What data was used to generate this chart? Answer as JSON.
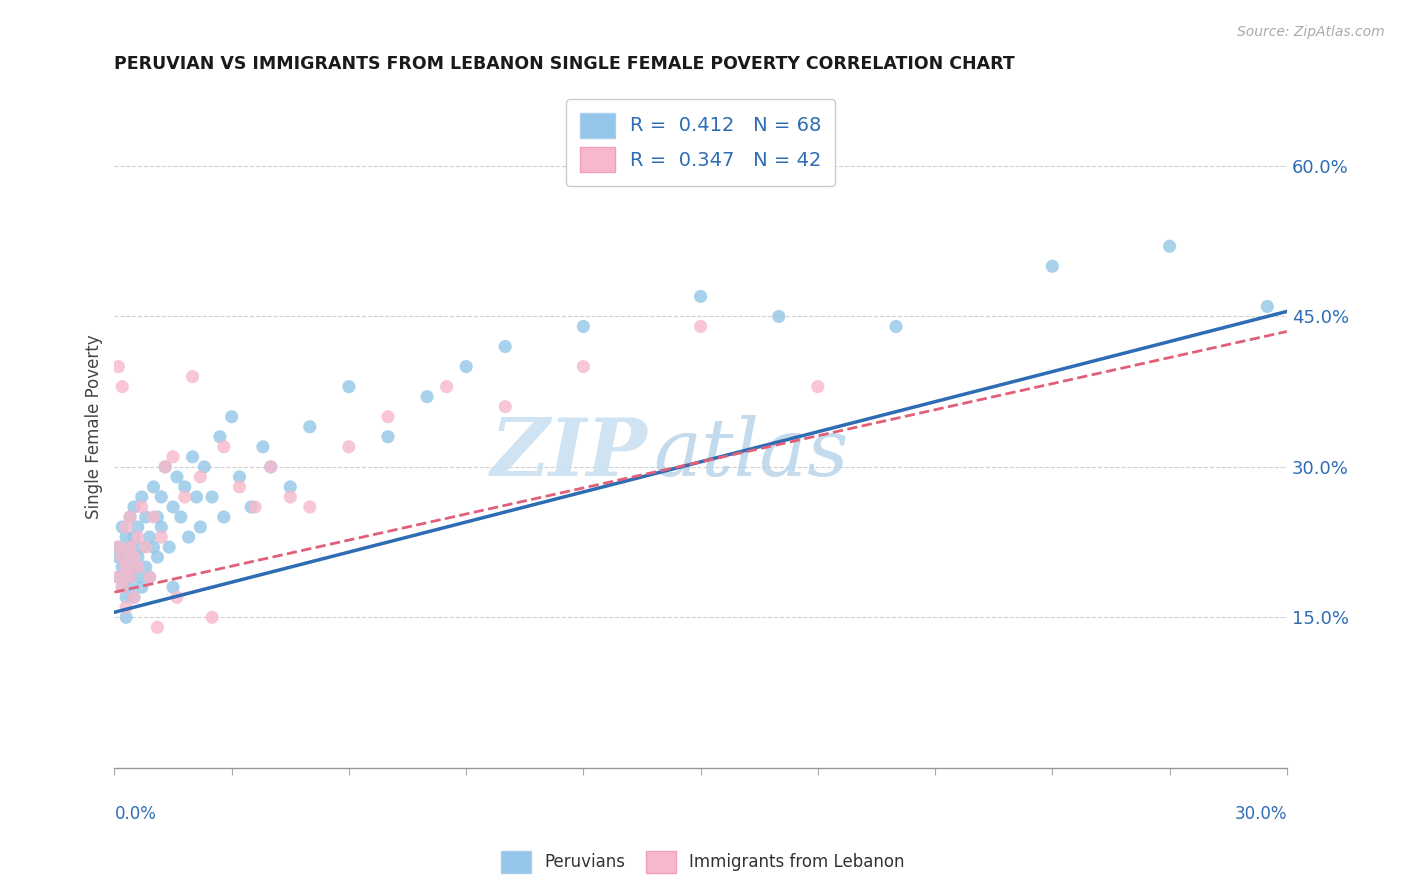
{
  "title": "PERUVIAN VS IMMIGRANTS FROM LEBANON SINGLE FEMALE POVERTY CORRELATION CHART",
  "source": "Source: ZipAtlas.com",
  "ylabel": "Single Female Poverty",
  "ylabel_ticks": [
    "15.0%",
    "30.0%",
    "45.0%",
    "60.0%"
  ],
  "ylabel_tick_vals": [
    0.15,
    0.3,
    0.45,
    0.6
  ],
  "xmin": 0.0,
  "xmax": 0.3,
  "ymin": 0.0,
  "ymax": 0.68,
  "blue_color": "#93c6e8",
  "pink_color": "#f7b8cb",
  "blue_line_color": "#2e6db4",
  "pink_line_color": "#e0607a",
  "watermark_zip": "ZIP",
  "watermark_atlas": "atlas",
  "peruvians_label": "Peruvians",
  "lebanon_label": "Immigrants from Lebanon",
  "peru_x": [
    0.001,
    0.001,
    0.001,
    0.002,
    0.002,
    0.002,
    0.003,
    0.003,
    0.003,
    0.003,
    0.004,
    0.004,
    0.004,
    0.004,
    0.005,
    0.005,
    0.005,
    0.005,
    0.006,
    0.006,
    0.006,
    0.007,
    0.007,
    0.007,
    0.008,
    0.008,
    0.009,
    0.009,
    0.01,
    0.01,
    0.011,
    0.011,
    0.012,
    0.012,
    0.013,
    0.014,
    0.015,
    0.015,
    0.016,
    0.017,
    0.018,
    0.019,
    0.02,
    0.021,
    0.022,
    0.023,
    0.025,
    0.027,
    0.028,
    0.03,
    0.032,
    0.035,
    0.038,
    0.04,
    0.045,
    0.05,
    0.06,
    0.07,
    0.08,
    0.09,
    0.1,
    0.12,
    0.15,
    0.17,
    0.2,
    0.24,
    0.27,
    0.295
  ],
  "peru_y": [
    0.22,
    0.19,
    0.21,
    0.18,
    0.24,
    0.2,
    0.17,
    0.21,
    0.15,
    0.23,
    0.19,
    0.22,
    0.25,
    0.18,
    0.2,
    0.23,
    0.17,
    0.26,
    0.21,
    0.19,
    0.24,
    0.22,
    0.18,
    0.27,
    0.2,
    0.25,
    0.23,
    0.19,
    0.22,
    0.28,
    0.25,
    0.21,
    0.27,
    0.24,
    0.3,
    0.22,
    0.26,
    0.18,
    0.29,
    0.25,
    0.28,
    0.23,
    0.31,
    0.27,
    0.24,
    0.3,
    0.27,
    0.33,
    0.25,
    0.35,
    0.29,
    0.26,
    0.32,
    0.3,
    0.28,
    0.34,
    0.38,
    0.33,
    0.37,
    0.4,
    0.42,
    0.44,
    0.47,
    0.45,
    0.44,
    0.5,
    0.52,
    0.46
  ],
  "lebanon_x": [
    0.001,
    0.001,
    0.001,
    0.002,
    0.002,
    0.002,
    0.003,
    0.003,
    0.003,
    0.004,
    0.004,
    0.004,
    0.005,
    0.005,
    0.006,
    0.006,
    0.007,
    0.008,
    0.009,
    0.01,
    0.011,
    0.012,
    0.013,
    0.015,
    0.016,
    0.018,
    0.02,
    0.022,
    0.025,
    0.028,
    0.032,
    0.036,
    0.04,
    0.045,
    0.05,
    0.06,
    0.07,
    0.085,
    0.1,
    0.12,
    0.15,
    0.18
  ],
  "lebanon_y": [
    0.19,
    0.22,
    0.4,
    0.18,
    0.21,
    0.38,
    0.2,
    0.24,
    0.16,
    0.22,
    0.19,
    0.25,
    0.21,
    0.17,
    0.23,
    0.2,
    0.26,
    0.22,
    0.19,
    0.25,
    0.14,
    0.23,
    0.3,
    0.31,
    0.17,
    0.27,
    0.39,
    0.29,
    0.15,
    0.32,
    0.28,
    0.26,
    0.3,
    0.27,
    0.26,
    0.32,
    0.35,
    0.38,
    0.36,
    0.4,
    0.44,
    0.38
  ],
  "peru_line_x0": 0.0,
  "peru_line_x1": 0.3,
  "peru_line_y0": 0.155,
  "peru_line_y1": 0.455,
  "leb_line_x0": 0.0,
  "leb_line_x1": 0.3,
  "leb_line_y0": 0.175,
  "leb_line_y1": 0.435
}
